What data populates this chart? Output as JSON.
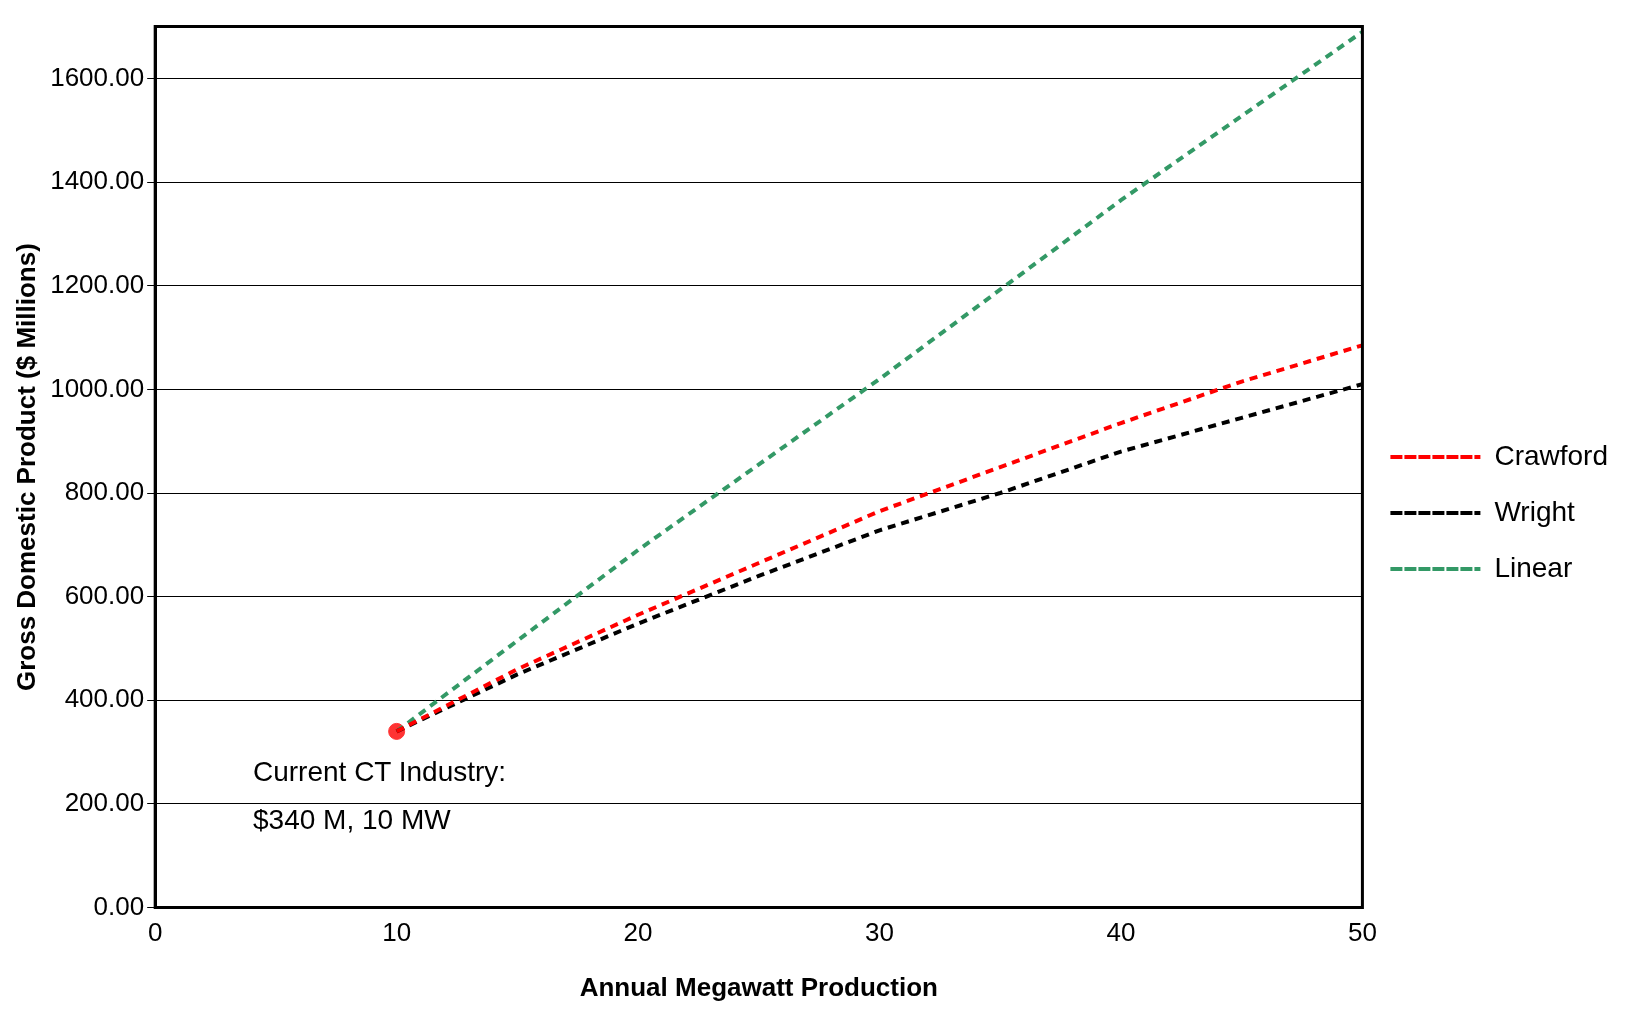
{
  "chart_data": {
    "type": "line",
    "xlabel": "Annual Megawatt Production",
    "ylabel": "Gross Domestic Product ($ Millions)",
    "xlim": [
      0,
      50
    ],
    "xticks": [
      0,
      10,
      20,
      30,
      40,
      50
    ],
    "ylim": [
      0,
      1700
    ],
    "yticks": [
      {
        "value": 0,
        "label": "0.00"
      },
      {
        "value": 200,
        "label": "200.00"
      },
      {
        "value": 400,
        "label": "400.00"
      },
      {
        "value": 600,
        "label": "600.00"
      },
      {
        "value": 800,
        "label": "800.00"
      },
      {
        "value": 1000,
        "label": "1000.00"
      },
      {
        "value": 1200,
        "label": "1200.00"
      },
      {
        "value": 1400,
        "label": "1400.00"
      },
      {
        "value": 1600,
        "label": "1600.00"
      }
    ],
    "grid": "y",
    "legend": "right",
    "line_style": "dashed",
    "marker": "none",
    "series": [
      {
        "name": "Crawford",
        "color": "#ff0000",
        "x": [
          10,
          15,
          20,
          25,
          30,
          35,
          40,
          45,
          50
        ],
        "values": [
          340,
          460,
          565,
          665,
          765,
          850,
          935,
          1015,
          1085
        ]
      },
      {
        "name": "Wright",
        "color": "#000000",
        "x": [
          10,
          15,
          20,
          25,
          30,
          35,
          40,
          45,
          50
        ],
        "values": [
          340,
          450,
          548,
          640,
          728,
          800,
          880,
          945,
          1010
        ]
      },
      {
        "name": "Linear",
        "color": "#339966",
        "x": [
          10,
          20,
          30,
          40,
          50
        ],
        "values": [
          340,
          690,
          1020,
          1365,
          1690
        ]
      },
      {
        "type": "scatter",
        "color": "#ff3333",
        "marker": "circle",
        "x": [
          10
        ],
        "values": [
          340
        ]
      }
    ],
    "annotations": [
      "Current CT Industry: $340 M, 10 MW"
    ]
  }
}
